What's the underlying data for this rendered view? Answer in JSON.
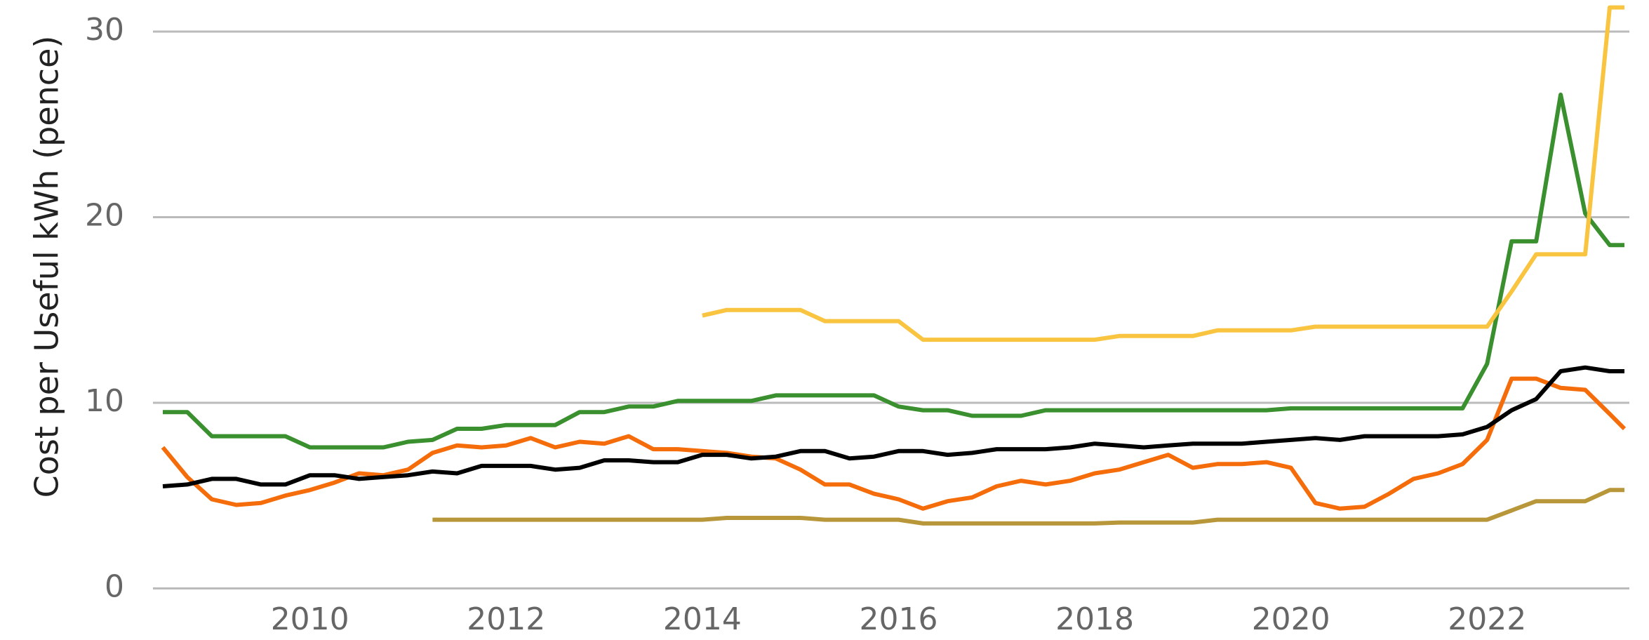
{
  "chart_data": {
    "type": "line",
    "y_label": "Cost per Useful kWh (pence)",
    "x": [
      2008.5,
      2008.75,
      2009,
      2009.25,
      2009.5,
      2009.75,
      2010,
      2010.25,
      2010.5,
      2010.75,
      2011,
      2011.25,
      2011.5,
      2011.75,
      2012,
      2012.25,
      2012.5,
      2012.75,
      2013,
      2013.25,
      2013.5,
      2013.75,
      2014,
      2014.25,
      2014.5,
      2014.75,
      2015,
      2015.25,
      2015.5,
      2015.75,
      2016,
      2016.25,
      2016.5,
      2016.75,
      2017,
      2017.25,
      2017.5,
      2017.75,
      2018,
      2018.25,
      2018.5,
      2018.75,
      2019,
      2019.25,
      2019.5,
      2019.75,
      2020,
      2020.25,
      2020.5,
      2020.75,
      2021,
      2021.25,
      2021.5,
      2021.75,
      2022,
      2022.25,
      2022.5,
      2022.75,
      2023,
      2023.25,
      2023.4
    ],
    "series": [
      {
        "color": "#3a8f2e",
        "values": [
          9.5,
          9.5,
          8.2,
          8.2,
          8.2,
          8.2,
          7.6,
          7.6,
          7.6,
          7.6,
          7.9,
          8.0,
          8.6,
          8.6,
          8.8,
          8.8,
          8.8,
          9.5,
          9.5,
          9.8,
          9.8,
          10.1,
          10.1,
          10.1,
          10.1,
          10.4,
          10.4,
          10.4,
          10.4,
          10.4,
          9.8,
          9.6,
          9.6,
          9.3,
          9.3,
          9.3,
          9.6,
          9.6,
          9.6,
          9.6,
          9.6,
          9.6,
          9.6,
          9.6,
          9.6,
          9.6,
          9.7,
          9.7,
          9.7,
          9.7,
          9.7,
          9.7,
          9.7,
          9.7,
          12.1,
          18.7,
          18.7,
          26.6,
          20.2,
          18.5,
          18.5
        ]
      },
      {
        "color": "#f9c440",
        "values": [
          null,
          null,
          null,
          null,
          null,
          null,
          null,
          null,
          null,
          null,
          null,
          null,
          null,
          null,
          null,
          null,
          null,
          null,
          null,
          null,
          null,
          null,
          14.7,
          15.0,
          15.0,
          15.0,
          15.0,
          14.4,
          14.4,
          14.4,
          14.4,
          13.4,
          13.4,
          13.4,
          13.4,
          13.4,
          13.4,
          13.4,
          13.4,
          13.6,
          13.6,
          13.6,
          13.6,
          13.9,
          13.9,
          13.9,
          13.9,
          14.1,
          14.1,
          14.1,
          14.1,
          14.1,
          14.1,
          14.1,
          14.1,
          16,
          18,
          18,
          18,
          31.3,
          31.3
        ]
      },
      {
        "color": "#b8963a",
        "values": [
          null,
          null,
          null,
          null,
          null,
          null,
          null,
          null,
          null,
          null,
          null,
          3.7,
          3.7,
          3.7,
          3.7,
          3.7,
          3.7,
          3.7,
          3.7,
          3.7,
          3.7,
          3.7,
          3.7,
          3.8,
          3.8,
          3.8,
          3.8,
          3.7,
          3.7,
          3.7,
          3.7,
          3.5,
          3.5,
          3.5,
          3.5,
          3.5,
          3.5,
          3.5,
          3.5,
          3.55,
          3.55,
          3.55,
          3.55,
          3.7,
          3.7,
          3.7,
          3.7,
          3.7,
          3.7,
          3.7,
          3.7,
          3.7,
          3.7,
          3.7,
          3.7,
          4.2,
          4.7,
          4.7,
          4.7,
          5.3,
          5.3
        ]
      },
      {
        "color": "#f56c0a",
        "values": [
          7.6,
          6.0,
          4.8,
          4.5,
          4.6,
          5.0,
          5.3,
          5.7,
          6.2,
          6.1,
          6.4,
          7.3,
          7.7,
          7.6,
          7.7,
          8.1,
          7.6,
          7.9,
          7.8,
          8.2,
          7.5,
          7.5,
          7.4,
          7.3,
          7.1,
          7.0,
          6.4,
          5.6,
          5.6,
          5.1,
          4.8,
          4.3,
          4.7,
          4.9,
          5.5,
          5.8,
          5.6,
          5.8,
          6.2,
          6.4,
          6.8,
          7.2,
          6.5,
          6.7,
          6.7,
          6.8,
          6.5,
          4.6,
          4.3,
          4.4,
          5.1,
          5.9,
          6.2,
          6.7,
          8.0,
          11.3,
          11.3,
          10.8,
          10.7,
          9.4,
          8.6
        ]
      },
      {
        "color": "#000000",
        "values": [
          5.5,
          5.6,
          5.9,
          5.9,
          5.6,
          5.6,
          6.1,
          6.1,
          5.9,
          6.0,
          6.1,
          6.3,
          6.2,
          6.6,
          6.6,
          6.6,
          6.4,
          6.5,
          6.9,
          6.9,
          6.8,
          6.8,
          7.2,
          7.2,
          7.0,
          7.1,
          7.4,
          7.4,
          7.0,
          7.1,
          7.4,
          7.4,
          7.2,
          7.3,
          7.5,
          7.5,
          7.5,
          7.6,
          7.8,
          7.7,
          7.6,
          7.7,
          7.8,
          7.8,
          7.8,
          7.9,
          8.0,
          8.1,
          8.0,
          8.2,
          8.2,
          8.2,
          8.2,
          8.3,
          8.7,
          9.6,
          10.2,
          11.7,
          11.9,
          11.7,
          11.7
        ]
      }
    ],
    "xlim": [
      2008.4,
      2023.45
    ],
    "xticks": [
      2010,
      2012,
      2014,
      2016,
      2018,
      2020,
      2022
    ],
    "ylim": [
      0,
      31.5
    ],
    "yticks": [
      0,
      10,
      20,
      30
    ],
    "grid": true
  }
}
